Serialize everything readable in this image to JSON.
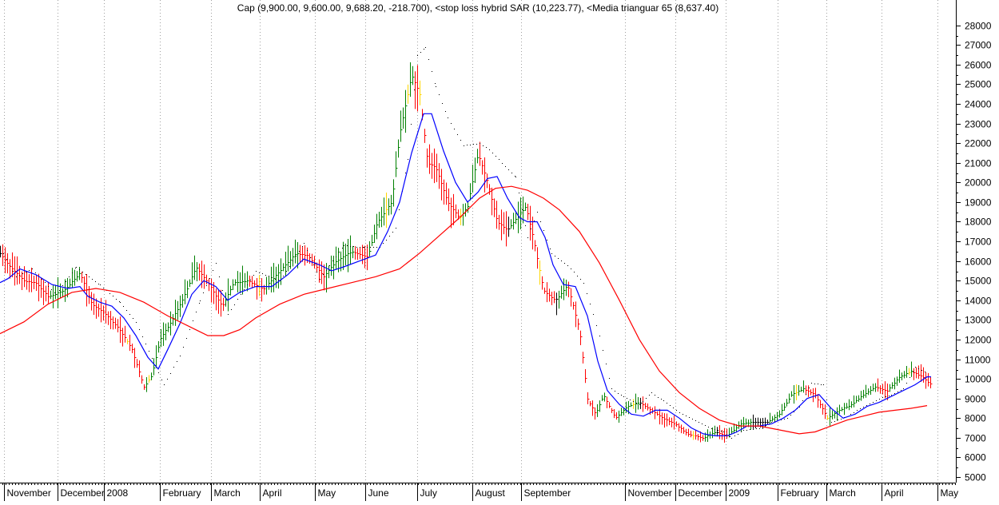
{
  "chart_data": {
    "type": "line",
    "title": "Cap (9,900.00, 9,600.00, 9,688.20, -218.700), <stop loss hybrid SAR (10,223.77), <Media trianguar 65 (8,637.40)",
    "ylim": [
      4700,
      28800
    ],
    "y_ticks": [
      5000,
      6000,
      7000,
      8000,
      9000,
      10000,
      11000,
      12000,
      13000,
      14000,
      15000,
      16000,
      17000,
      18000,
      19000,
      20000,
      21000,
      22000,
      23000,
      24000,
      25000,
      26000,
      27000,
      28000
    ],
    "x_ticks": [
      {
        "label": "November",
        "t": 5
      },
      {
        "label": "December",
        "t": 72
      },
      {
        "label": "2008",
        "t": 130
      },
      {
        "label": "February",
        "t": 200
      },
      {
        "label": "March",
        "t": 264
      },
      {
        "label": "April",
        "t": 325
      },
      {
        "label": "May",
        "t": 394
      },
      {
        "label": "June",
        "t": 457
      },
      {
        "label": "July",
        "t": 522
      },
      {
        "label": "August",
        "t": 591
      },
      {
        "label": "September",
        "t": 652
      },
      {
        "label": "November",
        "t": 782
      },
      {
        "label": "December",
        "t": 845
      },
      {
        "label": "2009",
        "t": 908
      },
      {
        "label": "February",
        "t": 973
      },
      {
        "label": "March",
        "t": 1034
      },
      {
        "label": "April",
        "t": 1103
      },
      {
        "label": "May",
        "t": 1173
      }
    ],
    "grid": true,
    "colors": {
      "up": "#008000",
      "down": "#ff0000",
      "neutral": "#000000",
      "highlight": "#ffd700",
      "sar": "#000000",
      "fast_ma": "#0000ff",
      "slow_ma": "#ff0000"
    },
    "price_path": [
      [
        0,
        16400
      ],
      [
        15,
        15600
      ],
      [
        30,
        15000
      ],
      [
        45,
        14900
      ],
      [
        60,
        14200
      ],
      [
        80,
        14500
      ],
      [
        100,
        15400
      ],
      [
        115,
        13800
      ],
      [
        130,
        13400
      ],
      [
        150,
        12500
      ],
      [
        165,
        11500
      ],
      [
        180,
        9600
      ],
      [
        190,
        10200
      ],
      [
        200,
        12000
      ],
      [
        215,
        13000
      ],
      [
        230,
        14200
      ],
      [
        245,
        15700
      ],
      [
        262,
        14800
      ],
      [
        278,
        13700
      ],
      [
        292,
        14900
      ],
      [
        310,
        15000
      ],
      [
        330,
        14600
      ],
      [
        350,
        15500
      ],
      [
        370,
        16400
      ],
      [
        385,
        16300
      ],
      [
        405,
        15200
      ],
      [
        420,
        16000
      ],
      [
        440,
        16500
      ],
      [
        460,
        16200
      ],
      [
        472,
        18000
      ],
      [
        490,
        19000
      ],
      [
        500,
        22500
      ],
      [
        515,
        25500
      ],
      [
        525,
        24500
      ],
      [
        535,
        21000
      ],
      [
        545,
        20800
      ],
      [
        560,
        19000
      ],
      [
        575,
        18200
      ],
      [
        585,
        18800
      ],
      [
        598,
        21500
      ],
      [
        610,
        20000
      ],
      [
        622,
        18000
      ],
      [
        635,
        17600
      ],
      [
        650,
        18400
      ],
      [
        658,
        18800
      ],
      [
        668,
        17000
      ],
      [
        680,
        14500
      ],
      [
        695,
        14000
      ],
      [
        710,
        14800
      ],
      [
        725,
        12500
      ],
      [
        735,
        9000
      ],
      [
        745,
        8200
      ],
      [
        755,
        9200
      ],
      [
        770,
        8000
      ],
      [
        785,
        8600
      ],
      [
        800,
        8800
      ],
      [
        815,
        8400
      ],
      [
        830,
        8000
      ],
      [
        845,
        7700
      ],
      [
        860,
        7200
      ],
      [
        880,
        7000
      ],
      [
        895,
        7300
      ],
      [
        910,
        7100
      ],
      [
        925,
        7700
      ],
      [
        940,
        7800
      ],
      [
        960,
        7800
      ],
      [
        975,
        8200
      ],
      [
        990,
        9200
      ],
      [
        1005,
        9500
      ],
      [
        1020,
        9200
      ],
      [
        1035,
        8000
      ],
      [
        1050,
        8400
      ],
      [
        1065,
        8700
      ],
      [
        1080,
        9200
      ],
      [
        1095,
        9600
      ],
      [
        1110,
        9400
      ],
      [
        1125,
        10100
      ],
      [
        1140,
        10400
      ],
      [
        1155,
        10100
      ],
      [
        1165,
        9700
      ]
    ],
    "series": [
      {
        "name": "stop loss hybrid SAR",
        "kind": "dots",
        "points": [
          [
            0,
            16700
          ],
          [
            20,
            15200
          ],
          [
            40,
            15600
          ],
          [
            70,
            14300
          ],
          [
            95,
            15700
          ],
          [
            125,
            14800
          ],
          [
            150,
            13900
          ],
          [
            170,
            12900
          ],
          [
            205,
            9700
          ],
          [
            225,
            11200
          ],
          [
            250,
            14000
          ],
          [
            270,
            15900
          ],
          [
            285,
            13300
          ],
          [
            320,
            15500
          ],
          [
            350,
            15000
          ],
          [
            380,
            16900
          ],
          [
            400,
            15100
          ],
          [
            430,
            16800
          ],
          [
            455,
            16700
          ],
          [
            475,
            16700
          ],
          [
            495,
            17700
          ],
          [
            510,
            21200
          ],
          [
            522,
            26500
          ],
          [
            532,
            26900
          ],
          [
            545,
            24900
          ],
          [
            560,
            23300
          ],
          [
            580,
            21900
          ],
          [
            600,
            22000
          ],
          [
            612,
            21700
          ],
          [
            628,
            21000
          ],
          [
            645,
            20300
          ],
          [
            660,
            17200
          ],
          [
            672,
            18500
          ],
          [
            690,
            16400
          ],
          [
            710,
            15800
          ],
          [
            730,
            14900
          ],
          [
            750,
            12200
          ],
          [
            765,
            9500
          ],
          [
            780,
            9100
          ],
          [
            800,
            8700
          ],
          [
            815,
            9300
          ],
          [
            830,
            8900
          ],
          [
            850,
            8300
          ],
          [
            870,
            7900
          ],
          [
            890,
            7500
          ],
          [
            905,
            7300
          ],
          [
            915,
            7000
          ],
          [
            930,
            7400
          ],
          [
            950,
            7500
          ],
          [
            965,
            7800
          ],
          [
            985,
            8000
          ],
          [
            1000,
            8600
          ],
          [
            1015,
            9800
          ],
          [
            1030,
            9700
          ],
          [
            1040,
            7800
          ],
          [
            1060,
            8100
          ],
          [
            1080,
            8600
          ],
          [
            1100,
            9000
          ],
          [
            1115,
            9200
          ],
          [
            1130,
            9500
          ],
          [
            1145,
            10600
          ],
          [
            1160,
            10300
          ]
        ]
      },
      {
        "name": "fast moving average",
        "kind": "line",
        "points": [
          [
            0,
            14900
          ],
          [
            10,
            15100
          ],
          [
            25,
            15600
          ],
          [
            45,
            15300
          ],
          [
            65,
            14800
          ],
          [
            85,
            14600
          ],
          [
            100,
            14700
          ],
          [
            110,
            14200
          ],
          [
            125,
            13900
          ],
          [
            140,
            13700
          ],
          [
            155,
            13100
          ],
          [
            170,
            12200
          ],
          [
            185,
            11100
          ],
          [
            198,
            10500
          ],
          [
            210,
            11500
          ],
          [
            225,
            12800
          ],
          [
            240,
            14300
          ],
          [
            255,
            15000
          ],
          [
            270,
            14700
          ],
          [
            285,
            14000
          ],
          [
            300,
            14400
          ],
          [
            320,
            14700
          ],
          [
            340,
            14700
          ],
          [
            360,
            15300
          ],
          [
            380,
            16100
          ],
          [
            400,
            15800
          ],
          [
            415,
            15500
          ],
          [
            430,
            15700
          ],
          [
            450,
            16000
          ],
          [
            470,
            16300
          ],
          [
            485,
            17500
          ],
          [
            500,
            19000
          ],
          [
            515,
            21500
          ],
          [
            530,
            23500
          ],
          [
            540,
            23500
          ],
          [
            555,
            21600
          ],
          [
            570,
            20000
          ],
          [
            585,
            19000
          ],
          [
            598,
            19500
          ],
          [
            610,
            20200
          ],
          [
            622,
            20300
          ],
          [
            635,
            19200
          ],
          [
            650,
            18200
          ],
          [
            660,
            18000
          ],
          [
            672,
            18000
          ],
          [
            682,
            17200
          ],
          [
            692,
            15800
          ],
          [
            705,
            14800
          ],
          [
            720,
            14700
          ],
          [
            735,
            13200
          ],
          [
            748,
            10900
          ],
          [
            760,
            9400
          ],
          [
            775,
            8700
          ],
          [
            790,
            8200
          ],
          [
            805,
            8100
          ],
          [
            820,
            8400
          ],
          [
            835,
            8400
          ],
          [
            850,
            8000
          ],
          [
            865,
            7500
          ],
          [
            880,
            7200
          ],
          [
            895,
            7100
          ],
          [
            910,
            7100
          ],
          [
            922,
            7300
          ],
          [
            935,
            7600
          ],
          [
            950,
            7600
          ],
          [
            965,
            7700
          ],
          [
            980,
            8000
          ],
          [
            995,
            8400
          ],
          [
            1010,
            9000
          ],
          [
            1025,
            9200
          ],
          [
            1040,
            8500
          ],
          [
            1055,
            8000
          ],
          [
            1070,
            8200
          ],
          [
            1085,
            8600
          ],
          [
            1100,
            8800
          ],
          [
            1115,
            9100
          ],
          [
            1130,
            9400
          ],
          [
            1145,
            9700
          ],
          [
            1160,
            10100
          ],
          [
            1165,
            10100
          ]
        ]
      },
      {
        "name": "Media trianguar 65",
        "kind": "line",
        "points": [
          [
            0,
            12300
          ],
          [
            30,
            12900
          ],
          [
            60,
            13800
          ],
          [
            90,
            14400
          ],
          [
            120,
            14600
          ],
          [
            150,
            14400
          ],
          [
            180,
            13900
          ],
          [
            210,
            13200
          ],
          [
            240,
            12600
          ],
          [
            260,
            12200
          ],
          [
            280,
            12200
          ],
          [
            300,
            12500
          ],
          [
            320,
            13100
          ],
          [
            350,
            13800
          ],
          [
            380,
            14300
          ],
          [
            410,
            14600
          ],
          [
            440,
            14900
          ],
          [
            470,
            15200
          ],
          [
            500,
            15600
          ],
          [
            525,
            16400
          ],
          [
            550,
            17300
          ],
          [
            575,
            18200
          ],
          [
            600,
            19200
          ],
          [
            620,
            19700
          ],
          [
            640,
            19800
          ],
          [
            660,
            19600
          ],
          [
            680,
            19200
          ],
          [
            700,
            18600
          ],
          [
            725,
            17500
          ],
          [
            750,
            15900
          ],
          [
            775,
            14000
          ],
          [
            800,
            12000
          ],
          [
            825,
            10400
          ],
          [
            850,
            9300
          ],
          [
            875,
            8500
          ],
          [
            900,
            7900
          ],
          [
            925,
            7600
          ],
          [
            950,
            7600
          ],
          [
            975,
            7400
          ],
          [
            1000,
            7200
          ],
          [
            1020,
            7300
          ],
          [
            1040,
            7600
          ],
          [
            1060,
            7900
          ],
          [
            1080,
            8100
          ],
          [
            1100,
            8300
          ],
          [
            1120,
            8400
          ],
          [
            1140,
            8500
          ],
          [
            1160,
            8637
          ]
        ]
      }
    ]
  }
}
